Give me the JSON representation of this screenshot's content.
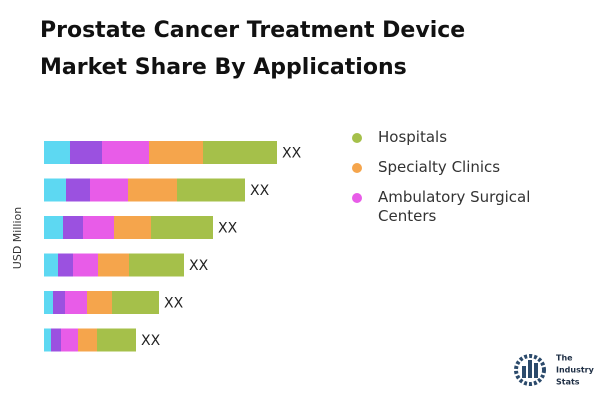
{
  "chart_data": {
    "type": "stacked-bar-horizontal",
    "title": "Prostate Cancer Treatment Device Market Share By Applications",
    "y_label": "USD Million",
    "categories": [
      null,
      null,
      null,
      null,
      null,
      null
    ],
    "series": [
      {
        "name": null,
        "color": "#5dd8f2",
        "values": [
          26,
          22,
          19,
          14,
          9,
          7
        ]
      },
      {
        "name": null,
        "color": "#9b51e0",
        "values": [
          32,
          24,
          20,
          15,
          12,
          10
        ]
      },
      {
        "name": "Ambulatory Surgical Centers",
        "color": "#e85ce8",
        "values": [
          47,
          38,
          31,
          25,
          22,
          17
        ]
      },
      {
        "name": "Specialty Clinics",
        "color": "#f5a54c",
        "values": [
          54,
          49,
          37,
          31,
          25,
          19
        ]
      },
      {
        "name": "Hospitals",
        "color": "#a5c04a",
        "values": [
          74,
          68,
          62,
          55,
          47,
          39
        ]
      }
    ],
    "value_labels": [
      "XX",
      "XX",
      "XX",
      "XX",
      "XX",
      "XX"
    ],
    "legend": "right"
  },
  "logo": {
    "lines": [
      "The",
      "Industry",
      "Stats"
    ]
  }
}
